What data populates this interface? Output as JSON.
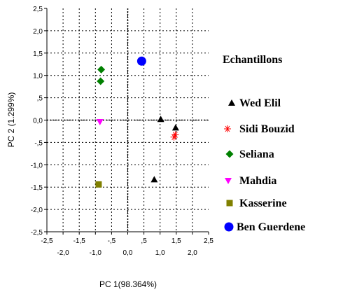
{
  "chart_data": {
    "type": "scatter",
    "xlabel": "PC 1(98.364%)",
    "ylabel": "PC 2 (1.299%)",
    "xlim": [
      -2.5,
      2.5
    ],
    "ylim": [
      -2.5,
      2.5
    ],
    "x_ticks": [
      "-2,5",
      "-2,0",
      "-1,5",
      "-1,0",
      "-,5",
      "0,0",
      ",5",
      "1,0",
      "1,5",
      "2,0",
      "2,5"
    ],
    "y_ticks": [
      "2,5",
      "2,0",
      "1,5",
      "1,0",
      ",5",
      "0,0",
      "-,5",
      "-1,0",
      "-1,5",
      "-2,0",
      "-2,5"
    ],
    "grid": true,
    "legend_position": "right",
    "legend_title": "Echantillons",
    "series": [
      {
        "name": "Wed Elil",
        "marker": "triangle",
        "color": "#000000",
        "points": [
          [
            1.02,
            0.02
          ],
          [
            1.48,
            -0.17
          ],
          [
            0.82,
            -1.33
          ]
        ]
      },
      {
        "name": "Sidi Bouzid",
        "marker": "asterisk",
        "color": "#ff0000",
        "points": [
          [
            1.43,
            -0.38
          ],
          [
            1.47,
            -0.33
          ]
        ]
      },
      {
        "name": "Seliana",
        "marker": "diamond",
        "color": "#008000",
        "points": [
          [
            -0.82,
            1.13
          ],
          [
            -0.84,
            0.87
          ]
        ]
      },
      {
        "name": "Mahdia",
        "marker": "triangle-down",
        "color": "#ff00ff",
        "points": [
          [
            -0.86,
            -0.04
          ]
        ]
      },
      {
        "name": "Kasserine",
        "marker": "square",
        "color": "#808000",
        "points": [
          [
            -0.9,
            -1.44
          ]
        ]
      },
      {
        "name": "Ben Guerdene",
        "marker": "circle",
        "color": "#0000ff",
        "points": [
          [
            0.43,
            1.32
          ]
        ]
      }
    ]
  }
}
